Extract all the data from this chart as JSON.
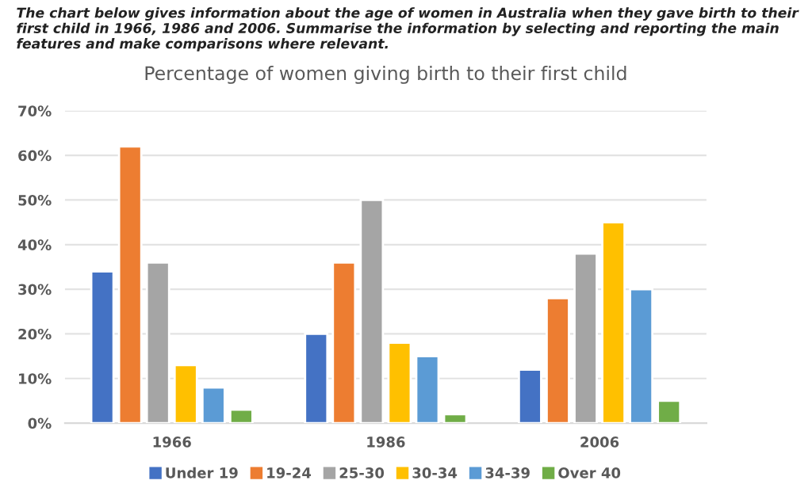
{
  "chart_data": {
    "type": "bar",
    "title": "Percentage of women giving birth to their first child",
    "annotations": [
      "The chart below gives information about the age of women in Australia when they gave birth to their first child in 1966, 1986 and 2006. Summarise the information by selecting and reporting the main features and make comparisons where relevant."
    ],
    "categories": [
      "1966",
      "1986",
      "2006"
    ],
    "series": [
      {
        "name": "Under 19",
        "color": "#4472c4",
        "values": [
          34,
          20,
          12
        ]
      },
      {
        "name": "19-24",
        "color": "#ed7d31",
        "values": [
          62,
          36,
          28
        ]
      },
      {
        "name": "25-30",
        "color": "#a5a5a5",
        "values": [
          36,
          50,
          38
        ]
      },
      {
        "name": "30-34",
        "color": "#ffc000",
        "values": [
          13,
          18,
          45
        ]
      },
      {
        "name": "34-39",
        "color": "#5b9bd5",
        "values": [
          8,
          15,
          30
        ]
      },
      {
        "name": "Over 40",
        "color": "#70ad47",
        "values": [
          3,
          2,
          5
        ]
      }
    ],
    "ylim": [
      0,
      70
    ],
    "yticks": [
      {
        "value": 0,
        "label": "0%"
      },
      {
        "value": 10,
        "label": "10%"
      },
      {
        "value": 20,
        "label": "20%"
      },
      {
        "value": 30,
        "label": "30%"
      },
      {
        "value": 40,
        "label": "40%"
      },
      {
        "value": 50,
        "label": "50%"
      },
      {
        "value": 60,
        "label": "60%"
      },
      {
        "value": 70,
        "label": "70%"
      }
    ],
    "grid": "y",
    "legend": "bottom"
  }
}
